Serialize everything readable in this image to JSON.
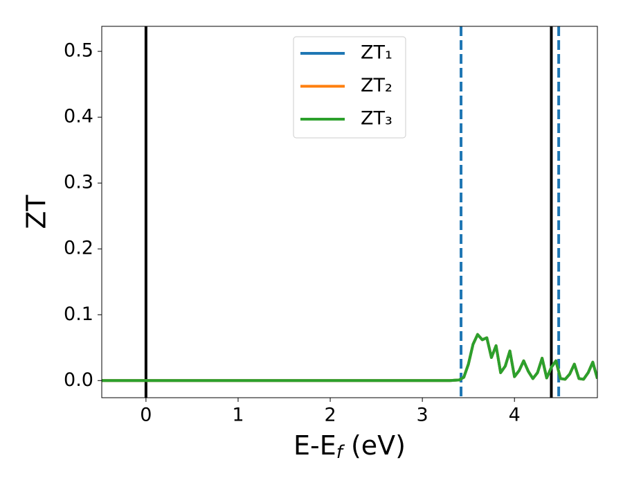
{
  "chart_data": {
    "type": "line",
    "y_label": "ZT",
    "x_label_parts": [
      "E-E",
      "f",
      " (eV)"
    ],
    "x": [
      -0.5,
      0,
      1,
      2,
      3,
      3.3,
      3.4,
      3.45,
      3.5,
      3.55,
      3.6,
      3.65,
      3.7,
      3.75,
      3.8,
      3.85,
      3.9,
      3.95,
      4.0,
      4.05,
      4.1,
      4.15,
      4.2,
      4.25,
      4.3,
      4.35,
      4.4,
      4.45,
      4.5,
      4.55,
      4.6,
      4.65,
      4.7,
      4.75,
      4.8,
      4.85,
      4.9
    ],
    "series": [
      {
        "name": "ZT₁",
        "color": "#1f77b4",
        "values": [
          0,
          0,
          0,
          0,
          0,
          0,
          0.001,
          0.005,
          0.025,
          0.055,
          0.07,
          0.062,
          0.065,
          0.035,
          0.053,
          0.012,
          0.022,
          0.045,
          0.006,
          0.015,
          0.03,
          0.014,
          0.003,
          0.012,
          0.034,
          0.004,
          0.02,
          0.03,
          0.003,
          0.002,
          0.01,
          0.025,
          0.003,
          0.002,
          0.012,
          0.028,
          0.003
        ]
      },
      {
        "name": "ZT₂",
        "color": "#ff7f0e",
        "values": [
          0,
          0,
          0,
          0,
          0,
          0,
          0.001,
          0.005,
          0.025,
          0.055,
          0.07,
          0.062,
          0.065,
          0.035,
          0.053,
          0.012,
          0.022,
          0.045,
          0.006,
          0.015,
          0.03,
          0.014,
          0.003,
          0.012,
          0.034,
          0.004,
          0.02,
          0.03,
          0.003,
          0.002,
          0.01,
          0.025,
          0.003,
          0.002,
          0.012,
          0.028,
          0.003
        ]
      },
      {
        "name": "ZT₃",
        "color": "#2ca02c",
        "values": [
          0,
          0,
          0,
          0,
          0,
          0,
          0.001,
          0.005,
          0.025,
          0.055,
          0.07,
          0.062,
          0.065,
          0.035,
          0.053,
          0.012,
          0.022,
          0.045,
          0.006,
          0.015,
          0.03,
          0.014,
          0.003,
          0.012,
          0.034,
          0.004,
          0.02,
          0.03,
          0.003,
          0.002,
          0.01,
          0.025,
          0.003,
          0.002,
          0.012,
          0.028,
          0.003
        ]
      }
    ],
    "vlines": [
      {
        "x": 0,
        "color": "#000000",
        "style": "solid"
      },
      {
        "x": 4.4,
        "color": "#000000",
        "style": "solid"
      },
      {
        "x": 3.42,
        "color": "#1f77b4",
        "style": "dashed"
      },
      {
        "x": 4.48,
        "color": "#1f77b4",
        "style": "dashed"
      }
    ],
    "xlim": [
      -0.48,
      4.9
    ],
    "ylim": [
      -0.026,
      0.538
    ],
    "xticks": [
      0,
      1,
      2,
      3,
      4
    ],
    "yticks": [
      {
        "value": 0,
        "label": "0.0"
      },
      0.1,
      0.2,
      0.3,
      0.4,
      0.5
    ],
    "legend": "upper center",
    "grid": false
  }
}
